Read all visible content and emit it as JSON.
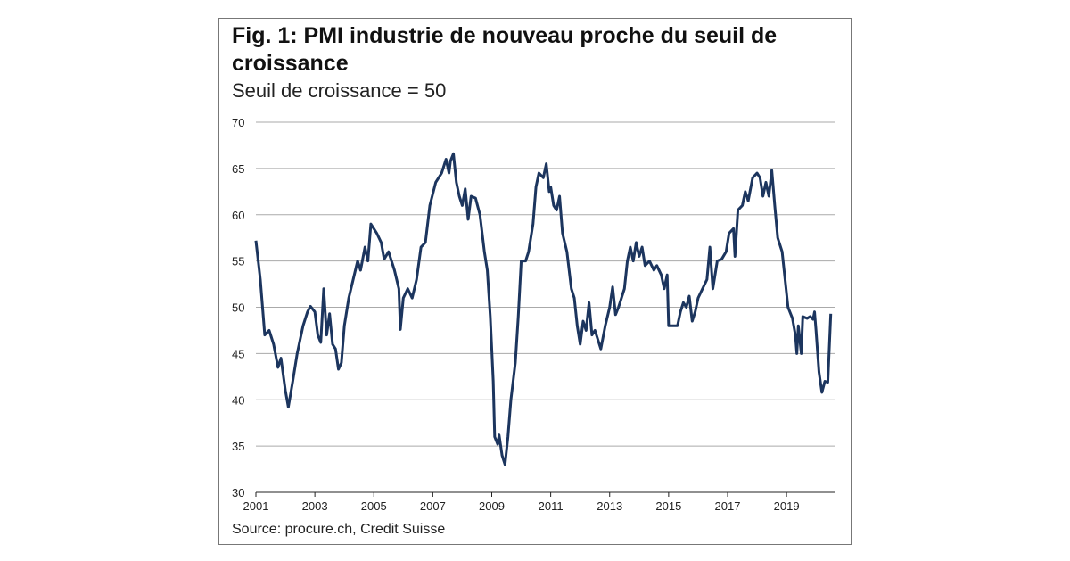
{
  "chart_data": {
    "type": "line",
    "title": "Fig. 1: PMI industrie de nouveau proche du seuil de croissance",
    "subtitle": "Seuil de croissance = 50",
    "source": "Source: procure.ch, Credit Suisse",
    "x": [
      2001.0,
      2001.15,
      2001.3,
      2001.45,
      2001.6,
      2001.75,
      2001.85,
      2002.0,
      2002.1,
      2002.25,
      2002.4,
      2002.6,
      2002.75,
      2002.85,
      2003.0,
      2003.1,
      2003.2,
      2003.3,
      2003.4,
      2003.5,
      2003.6,
      2003.7,
      2003.8,
      2003.9,
      2004.0,
      2004.15,
      2004.3,
      2004.45,
      2004.55,
      2004.7,
      2004.8,
      2004.9,
      2005.1,
      2005.25,
      2005.35,
      2005.5,
      2005.7,
      2005.85,
      2005.9,
      2006.0,
      2006.15,
      2006.3,
      2006.45,
      2006.6,
      2006.75,
      2006.9,
      2007.1,
      2007.3,
      2007.45,
      2007.55,
      2007.6,
      2007.7,
      2007.8,
      2007.9,
      2008.0,
      2008.1,
      2008.2,
      2008.3,
      2008.45,
      2008.6,
      2008.75,
      2008.85,
      2008.95,
      2009.05,
      2009.1,
      2009.2,
      2009.25,
      2009.35,
      2009.45,
      2009.55,
      2009.65,
      2009.8,
      2009.9,
      2010.0,
      2010.15,
      2010.25,
      2010.4,
      2010.5,
      2010.6,
      2010.75,
      2010.85,
      2010.95,
      2011.0,
      2011.1,
      2011.2,
      2011.3,
      2011.4,
      2011.55,
      2011.7,
      2011.8,
      2011.9,
      2012.0,
      2012.1,
      2012.2,
      2012.3,
      2012.4,
      2012.5,
      2012.6,
      2012.7,
      2012.85,
      2013.0,
      2013.1,
      2013.2,
      2013.3,
      2013.5,
      2013.6,
      2013.7,
      2013.8,
      2013.9,
      2014.0,
      2014.1,
      2014.2,
      2014.35,
      2014.5,
      2014.6,
      2014.75,
      2014.85,
      2014.95,
      2015.0,
      2015.1,
      2015.3,
      2015.4,
      2015.5,
      2015.6,
      2015.7,
      2015.8,
      2015.9,
      2016.0,
      2016.15,
      2016.3,
      2016.4,
      2016.5,
      2016.65,
      2016.8,
      2016.95,
      2017.05,
      2017.2,
      2017.25,
      2017.35,
      2017.5,
      2017.6,
      2017.7,
      2017.85,
      2018.0,
      2018.1,
      2018.2,
      2018.3,
      2018.4,
      2018.5,
      2018.6,
      2018.7,
      2018.85,
      2018.95,
      2019.05,
      2019.2,
      2019.3,
      2019.35,
      2019.4,
      2019.5,
      2019.55,
      2019.7,
      2019.8,
      2019.9,
      2019.95,
      2020.0,
      2020.1,
      2020.2,
      2020.3,
      2020.4,
      2020.5
    ],
    "series": [
      {
        "color": "#1c355e",
        "values": [
          57.2,
          53,
          47,
          47.5,
          46,
          43.5,
          44.5,
          41,
          39.2,
          42,
          45,
          48,
          49.5,
          50.1,
          49.5,
          47,
          46.2,
          52,
          47,
          49.3,
          46,
          45.5,
          43.3,
          44,
          48,
          51,
          53,
          55,
          54,
          56.5,
          55,
          59,
          58,
          57,
          55.2,
          56,
          54,
          52,
          47.6,
          51,
          52,
          51,
          53,
          56.5,
          57,
          61,
          63.5,
          64.5,
          66,
          64.5,
          65.8,
          66.6,
          63.5,
          62,
          61,
          62.8,
          59.5,
          62,
          61.8,
          60,
          56,
          54,
          49,
          42,
          36,
          35.2,
          36.2,
          34,
          33,
          36,
          40,
          44,
          49,
          55,
          55,
          56,
          59,
          63,
          64.5,
          64,
          65.5,
          62.5,
          63,
          61,
          60.5,
          62,
          58,
          56,
          52,
          51,
          48,
          46,
          48.5,
          47.5,
          50.5,
          47,
          47.5,
          46.5,
          45.5,
          48,
          50,
          52.2,
          49.2,
          50,
          52,
          55,
          56.5,
          55,
          57,
          55.5,
          56.5,
          54.5,
          55,
          54,
          54.5,
          53.5,
          52,
          53.5,
          48,
          48,
          48,
          49.5,
          50.5,
          50,
          51.2,
          48.5,
          49.5,
          51,
          52,
          53,
          56.5,
          52,
          55,
          55.2,
          56,
          58,
          58.5,
          55.5,
          60.5,
          61,
          62.5,
          61.5,
          64,
          64.5,
          64,
          62,
          63.5,
          62,
          64.8,
          61,
          57.5,
          56,
          53,
          50,
          48.8,
          47,
          45,
          48,
          45,
          49,
          48.8,
          49,
          48.7,
          49.5,
          47.5,
          43,
          40.8,
          42,
          41.9,
          49.3
        ]
      }
    ],
    "xlim": [
      2001,
      2020.63
    ],
    "xticks": [
      2001,
      2003,
      2005,
      2007,
      2009,
      2011,
      2013,
      2015,
      2017,
      2019
    ],
    "ylim": [
      30,
      70
    ],
    "yticks": [
      30,
      35,
      40,
      45,
      50,
      55,
      60,
      65,
      70
    ],
    "grid": true
  }
}
